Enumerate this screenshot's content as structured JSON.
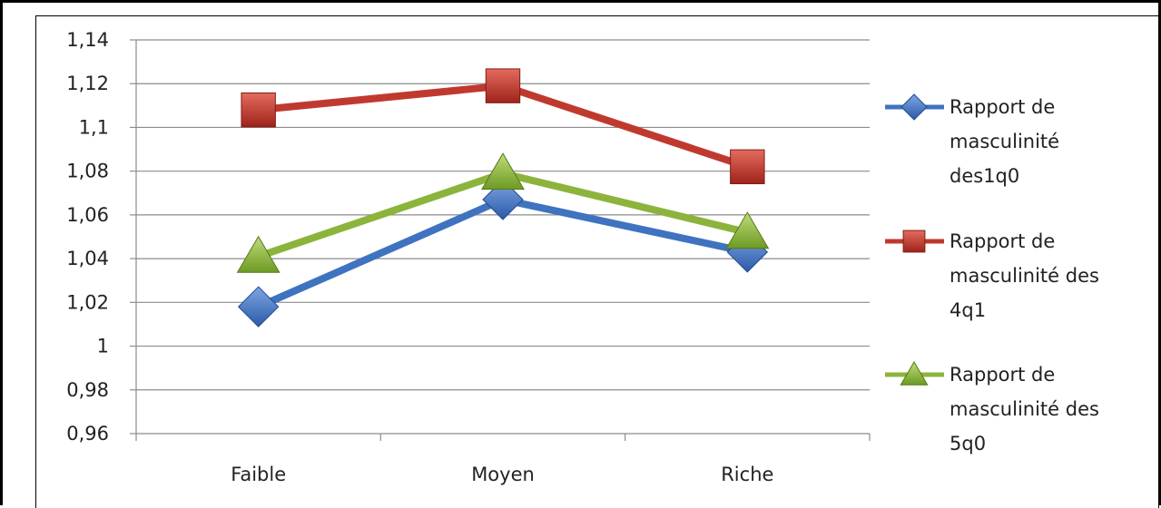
{
  "chart_data": {
    "type": "line",
    "categories": [
      "Faible",
      "Moyen",
      "Riche"
    ],
    "ylim": [
      0.96,
      1.14
    ],
    "yticks": [
      "1,14",
      "1,12",
      "1,1",
      "1,08",
      "1,06",
      "1,04",
      "1,02",
      "1",
      "0,98",
      "0,96"
    ],
    "ytick_values": [
      1.14,
      1.12,
      1.1,
      1.08,
      1.06,
      1.04,
      1.02,
      1.0,
      0.98,
      0.96
    ],
    "grid": true,
    "legend_position": "right",
    "series": [
      {
        "name_lines": [
          "Rapport de",
          "masculinité",
          "des1q0"
        ],
        "values": [
          1.018,
          1.067,
          1.043
        ],
        "color": "#3f73c0",
        "marker": "diamond"
      },
      {
        "name_lines": [
          "Rapport de",
          "masculinité des",
          "4q1"
        ],
        "values": [
          1.108,
          1.119,
          1.082
        ],
        "color": "#c0392f",
        "marker": "square"
      },
      {
        "name_lines": [
          "Rapport de",
          "masculinité des",
          "5q0"
        ],
        "values": [
          1.041,
          1.079,
          1.052
        ],
        "color": "#8cb43c",
        "marker": "triangle"
      }
    ]
  }
}
